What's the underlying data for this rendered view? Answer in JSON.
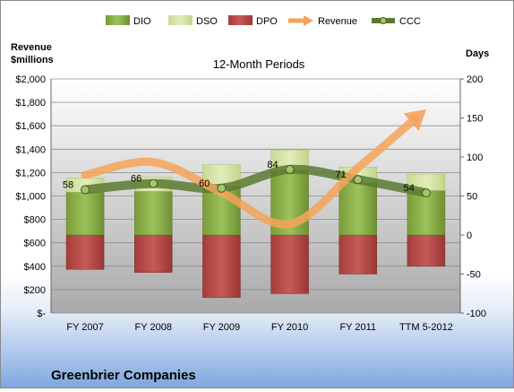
{
  "chart_data": {
    "type": "bar",
    "subtitle": "12-Month Periods",
    "company": "Greenbrier Companies",
    "left_axis": {
      "label_lines": [
        "Revenue",
        "$millions"
      ],
      "ticks": [
        "$-",
        "$200",
        "$400",
        "$600",
        "$800",
        "$1,000",
        "$1,200",
        "$1,400",
        "$1,600",
        "$1,800",
        "$2,000"
      ],
      "range": [
        0,
        2000
      ]
    },
    "right_axis": {
      "label": "Days",
      "ticks": [
        "-100",
        "-50",
        "0",
        "50",
        "100",
        "150",
        "200"
      ],
      "range": [
        -100,
        200
      ]
    },
    "categories": [
      "FY 2007",
      "FY 2008",
      "FY 2009",
      "FY 2010",
      "FY 2011",
      "TTM 5-2012"
    ],
    "legend": [
      {
        "key": "dio",
        "label": "DIO",
        "color": "#8fb34a"
      },
      {
        "key": "dso",
        "label": "DSO",
        "color": "#d7e4a8"
      },
      {
        "key": "dpo",
        "label": "DPO",
        "color": "#c0504d"
      },
      {
        "key": "revenue",
        "label": "Revenue",
        "color": "#f4a35a"
      },
      {
        "key": "ccc",
        "label": "CCC",
        "color": "#5a7a32"
      }
    ],
    "series": [
      {
        "name": "DIO",
        "values": [
          55,
          56,
          63,
          83,
          67,
          57
        ]
      },
      {
        "name": "DSO",
        "values": [
          18,
          18,
          27,
          26,
          20,
          21
        ]
      },
      {
        "name": "DPO",
        "values": [
          -44,
          -48,
          -80,
          -75,
          -50,
          -40
        ]
      },
      {
        "name": "Revenue",
        "values": [
          1180,
          1290,
          1030,
          760,
          1240,
          1740
        ]
      },
      {
        "name": "CCC",
        "values": [
          58,
          66,
          60,
          84,
          71,
          54
        ]
      }
    ],
    "ccc_labels": [
      "58",
      "66",
      "60",
      "84",
      "71",
      "54"
    ],
    "grid": true,
    "legend_position": "top"
  }
}
